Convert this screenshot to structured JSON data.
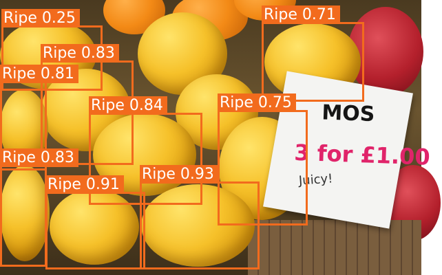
{
  "detections": [
    {
      "label": "Ripe",
      "confidence": "0.25"
    },
    {
      "label": "Ripe",
      "confidence": "0.71"
    },
    {
      "label": "Ripe",
      "confidence": "0.83"
    },
    {
      "label": "Ripe",
      "confidence": "0.81"
    },
    {
      "label": "Ripe",
      "confidence": "0.84"
    },
    {
      "label": "Ripe",
      "confidence": "0.75"
    },
    {
      "label": "Ripe",
      "confidence": "0.83"
    },
    {
      "label": "Ripe",
      "confidence": "0.91"
    },
    {
      "label": "Ripe",
      "confidence": "0.93"
    }
  ],
  "box_color": "#f26b1d",
  "label_text_color": "#ffffff",
  "sign": {
    "word": "MOS",
    "price": "3 for £1.00",
    "note": "Juicy!"
  }
}
